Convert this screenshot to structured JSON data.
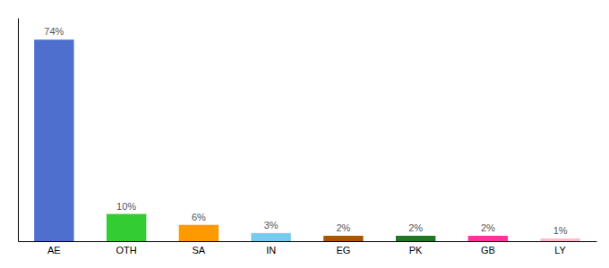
{
  "chart_data": {
    "type": "bar",
    "categories": [
      "AE",
      "OTH",
      "SA",
      "IN",
      "EG",
      "PK",
      "GB",
      "LY"
    ],
    "values": [
      74,
      10,
      6,
      3,
      2,
      2,
      2,
      1
    ],
    "value_labels": [
      "74%",
      "10%",
      "6%",
      "3%",
      "2%",
      "2%",
      "2%",
      "1%"
    ],
    "colors": [
      "#4f6fce",
      "#33cc33",
      "#ff9900",
      "#77ccee",
      "#aa5500",
      "#227722",
      "#ff3399",
      "#ffbbcc"
    ],
    "ylim": [
      0,
      82
    ],
    "data_labels": true,
    "tick_labels": "x",
    "grid": false
  }
}
